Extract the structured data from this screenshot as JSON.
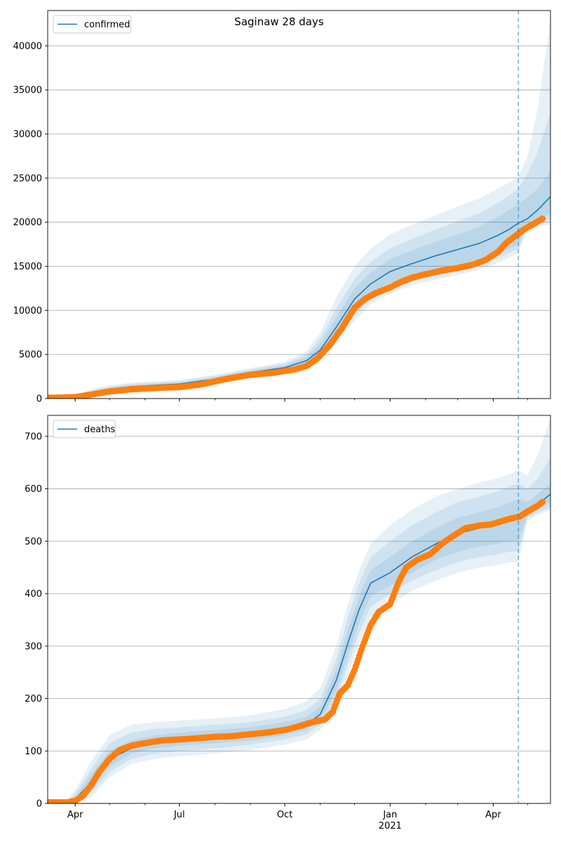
{
  "figure": {
    "suptitle": "Saginaw 28 days"
  },
  "chart_data": [
    {
      "type": "line",
      "legend": {
        "label": "confirmed",
        "placement": "top-left"
      },
      "ylim": [
        0,
        44000
      ],
      "yticks": [
        0,
        5000,
        10000,
        15000,
        20000,
        25000,
        30000,
        35000,
        40000
      ],
      "xlim": [
        "2020-03-08",
        "2021-05-21"
      ],
      "grid": "y",
      "forecast_start": "2021-04-23",
      "model": {
        "x": [
          "2020-03-08",
          "2020-03-20",
          "2020-04-01",
          "2020-04-15",
          "2020-05-01",
          "2020-05-20",
          "2020-06-10",
          "2020-07-01",
          "2020-08-01",
          "2020-09-01",
          "2020-10-01",
          "2020-10-20",
          "2020-11-01",
          "2020-11-15",
          "2020-12-01",
          "2020-12-15",
          "2021-01-01",
          "2021-01-20",
          "2021-02-10",
          "2021-03-01",
          "2021-03-20",
          "2021-04-05",
          "2021-04-15",
          "2021-04-23",
          "2021-05-01",
          "2021-05-10",
          "2021-05-21"
        ],
        "mean": [
          0,
          20,
          150,
          600,
          1050,
          1350,
          1500,
          1650,
          2200,
          2950,
          3500,
          4300,
          5500,
          8100,
          11300,
          13000,
          14400,
          15300,
          16200,
          16900,
          17600,
          18500,
          19200,
          19900,
          20400,
          21400,
          22900
        ],
        "band_inner": [
          [
            0,
            15,
            120,
            500,
            900,
            1200,
            1350,
            1480,
            2000,
            2750,
            3300,
            4000,
            5000,
            7300,
            10300,
            12000,
            13100,
            13900,
            14600,
            15100,
            15600,
            16400,
            17000,
            17500,
            19800,
            20200,
            21000
          ],
          [
            0,
            25,
            200,
            750,
            1200,
            1500,
            1650,
            1800,
            2400,
            3150,
            3750,
            4700,
            6200,
            9200,
            12500,
            14300,
            15800,
            16800,
            17800,
            18600,
            19500,
            20600,
            21400,
            22100,
            22800,
            23800,
            25800
          ]
        ],
        "band_mid": [
          [
            0,
            10,
            90,
            400,
            800,
            1100,
            1250,
            1400,
            1900,
            2650,
            3200,
            3800,
            4700,
            6700,
            9500,
            11300,
            12500,
            13300,
            14000,
            14500,
            15100,
            15900,
            16500,
            17000,
            19500,
            19800,
            20300
          ],
          [
            0,
            35,
            260,
            900,
            1350,
            1650,
            1800,
            1950,
            2550,
            3300,
            3950,
            5000,
            6800,
            10200,
            13600,
            15500,
            17000,
            18100,
            19200,
            20100,
            21000,
            22200,
            23000,
            23800,
            25500,
            28000,
            32500
          ]
        ],
        "band_outer": [
          [
            0,
            5,
            60,
            300,
            700,
            1000,
            1150,
            1300,
            1800,
            2550,
            3100,
            3600,
            4400,
            6200,
            8800,
            10700,
            11900,
            12800,
            13500,
            14000,
            14600,
            15400,
            16000,
            16500,
            19200,
            19500,
            19700
          ],
          [
            0,
            50,
            340,
            1050,
            1500,
            1800,
            1950,
            2100,
            2700,
            3450,
            4150,
            5400,
            7500,
            11500,
            15000,
            17000,
            18600,
            19700,
            20800,
            21800,
            22700,
            23800,
            24500,
            25100,
            27500,
            33000,
            43000
          ]
        ]
      },
      "observed": {
        "x": [
          "2020-03-08",
          "2020-03-20",
          "2020-04-01",
          "2020-04-15",
          "2020-05-01",
          "2020-05-20",
          "2020-06-10",
          "2020-07-01",
          "2020-07-20",
          "2020-08-10",
          "2020-09-01",
          "2020-09-20",
          "2020-10-10",
          "2020-10-20",
          "2020-10-30",
          "2020-11-10",
          "2020-11-20",
          "2020-12-01",
          "2020-12-10",
          "2020-12-20",
          "2021-01-01",
          "2021-01-10",
          "2021-01-20",
          "2021-02-01",
          "2021-02-15",
          "2021-03-01",
          "2021-03-15",
          "2021-03-25",
          "2021-04-05",
          "2021-04-12",
          "2021-04-20",
          "2021-04-28",
          "2021-05-05",
          "2021-05-14"
        ],
        "y": [
          100,
          110,
          170,
          450,
          800,
          1050,
          1200,
          1300,
          1600,
          2200,
          2700,
          2900,
          3300,
          3700,
          4600,
          6200,
          8000,
          10300,
          11300,
          12000,
          12600,
          13200,
          13700,
          14100,
          14500,
          14800,
          15200,
          15700,
          16600,
          17600,
          18400,
          19200,
          19700,
          20400
        ]
      }
    },
    {
      "type": "line",
      "legend": {
        "label": "deaths",
        "placement": "top-left"
      },
      "ylim": [
        0,
        740
      ],
      "yticks": [
        0,
        100,
        200,
        300,
        400,
        500,
        600,
        700
      ],
      "xlim": [
        "2020-03-08",
        "2021-05-21"
      ],
      "xticks": [
        {
          "date": "2020-04-01",
          "label": "Apr"
        },
        {
          "date": "2020-07-01",
          "label": "Jul"
        },
        {
          "date": "2020-10-01",
          "label": "Oct"
        },
        {
          "date": "2021-01-01",
          "label": "Jan",
          "sublabel": "2021"
        },
        {
          "date": "2021-04-01",
          "label": "Apr"
        }
      ],
      "grid": "y",
      "forecast_start": "2021-04-23",
      "model": {
        "x": [
          "2020-03-08",
          "2020-03-25",
          "2020-04-01",
          "2020-04-15",
          "2020-05-01",
          "2020-05-20",
          "2020-06-10",
          "2020-07-01",
          "2020-08-01",
          "2020-09-01",
          "2020-10-01",
          "2020-10-20",
          "2020-11-01",
          "2020-11-15",
          "2020-11-25",
          "2020-12-05",
          "2020-12-15",
          "2021-01-01",
          "2021-01-20",
          "2021-02-10",
          "2021-03-01",
          "2021-03-20",
          "2021-04-05",
          "2021-04-15",
          "2021-04-23",
          "2021-05-01",
          "2021-05-10",
          "2021-05-21"
        ],
        "mean": [
          0,
          2,
          8,
          40,
          85,
          105,
          115,
          120,
          124,
          130,
          140,
          150,
          170,
          235,
          305,
          370,
          420,
          440,
          470,
          495,
          515,
          525,
          535,
          540,
          545,
          555,
          570,
          590
        ],
        "band_inner": [
          [
            0,
            1,
            5,
            30,
            70,
            95,
            105,
            110,
            115,
            120,
            130,
            140,
            160,
            215,
            280,
            345,
            395,
            415,
            440,
            465,
            480,
            490,
            495,
            500,
            500,
            550,
            560,
            575
          ],
          [
            0,
            3,
            12,
            55,
            100,
            120,
            130,
            135,
            140,
            145,
            155,
            165,
            185,
            255,
            330,
            395,
            445,
            470,
            500,
            525,
            545,
            555,
            565,
            575,
            580,
            575,
            590,
            610
          ]
        ],
        "band_mid": [
          [
            0,
            0,
            3,
            20,
            60,
            85,
            95,
            100,
            105,
            112,
            122,
            132,
            150,
            200,
            265,
            325,
            375,
            400,
            425,
            445,
            460,
            470,
            475,
            480,
            480,
            545,
            555,
            565
          ],
          [
            0,
            5,
            18,
            65,
            115,
            135,
            142,
            145,
            150,
            155,
            165,
            178,
            200,
            275,
            355,
            420,
            470,
            500,
            530,
            555,
            575,
            585,
            595,
            605,
            610,
            600,
            620,
            660
          ]
        ],
        "band_outer": [
          [
            0,
            0,
            1,
            12,
            50,
            75,
            85,
            90,
            95,
            102,
            112,
            122,
            140,
            185,
            245,
            305,
            355,
            380,
            405,
            425,
            440,
            450,
            455,
            460,
            460,
            540,
            550,
            560
          ],
          [
            0,
            8,
            25,
            80,
            130,
            150,
            155,
            158,
            162,
            168,
            180,
            195,
            220,
            300,
            380,
            445,
            495,
            530,
            560,
            585,
            600,
            612,
            620,
            628,
            635,
            625,
            665,
            735
          ]
        ]
      },
      "observed": {
        "x": [
          "2020-03-08",
          "2020-03-25",
          "2020-04-01",
          "2020-04-08",
          "2020-04-15",
          "2020-04-22",
          "2020-05-01",
          "2020-05-10",
          "2020-05-20",
          "2020-06-01",
          "2020-06-15",
          "2020-07-01",
          "2020-07-15",
          "2020-08-01",
          "2020-08-15",
          "2020-09-01",
          "2020-09-15",
          "2020-10-01",
          "2020-10-15",
          "2020-10-25",
          "2020-11-05",
          "2020-11-12",
          "2020-11-18",
          "2020-11-25",
          "2020-12-01",
          "2020-12-08",
          "2020-12-15",
          "2020-12-22",
          "2021-01-01",
          "2021-01-08",
          "2021-01-15",
          "2021-01-25",
          "2021-02-05",
          "2021-02-15",
          "2021-02-25",
          "2021-03-08",
          "2021-03-20",
          "2021-03-30",
          "2021-04-08",
          "2021-04-16",
          "2021-04-24",
          "2021-05-02",
          "2021-05-10",
          "2021-05-14"
        ],
        "y": [
          2,
          2,
          5,
          15,
          35,
          60,
          85,
          102,
          110,
          115,
          120,
          122,
          124,
          127,
          128,
          132,
          135,
          140,
          148,
          155,
          160,
          175,
          210,
          225,
          255,
          300,
          340,
          365,
          380,
          420,
          450,
          465,
          475,
          495,
          510,
          525,
          530,
          532,
          538,
          543,
          547,
          558,
          568,
          575
        ]
      }
    }
  ]
}
